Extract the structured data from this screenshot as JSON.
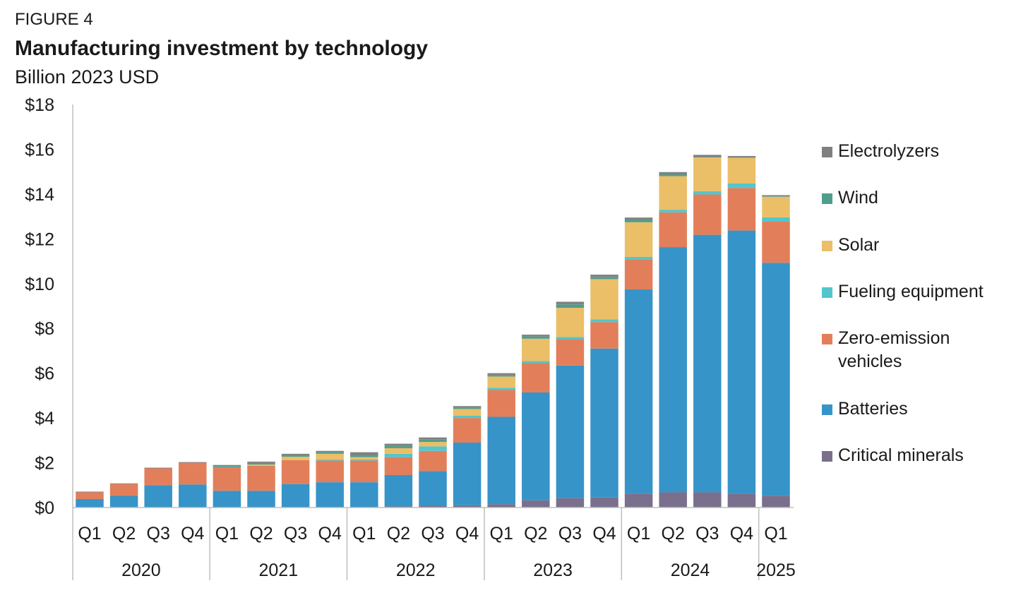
{
  "figure_label": "FIGURE 4",
  "title": "Manufacturing investment by technology",
  "subtitle": "Billion 2023 USD",
  "chart_data": {
    "type": "bar",
    "stacked": true,
    "title": "Manufacturing investment by technology",
    "ylabel": "Billion 2023 USD",
    "ylim": [
      0,
      18
    ],
    "yticks": [
      0,
      2,
      4,
      6,
      8,
      10,
      12,
      14,
      16,
      18
    ],
    "ytick_labels": [
      "$0",
      "$2",
      "$4",
      "$6",
      "$8",
      "$10",
      "$12",
      "$14",
      "$16",
      "$18"
    ],
    "categories": [
      "Q1",
      "Q2",
      "Q3",
      "Q4",
      "Q1",
      "Q2",
      "Q3",
      "Q4",
      "Q1",
      "Q2",
      "Q3",
      "Q4",
      "Q1",
      "Q2",
      "Q3",
      "Q4",
      "Q1",
      "Q2",
      "Q3",
      "Q4",
      "Q1"
    ],
    "year_groups": [
      {
        "label": "2020",
        "count": 4
      },
      {
        "label": "2021",
        "count": 4
      },
      {
        "label": "2022",
        "count": 4
      },
      {
        "label": "2023",
        "count": 4
      },
      {
        "label": "2024",
        "count": 4
      },
      {
        "label": "2025",
        "count": 1
      }
    ],
    "series": [
      {
        "name": "Critical minerals",
        "color": "#7a6f8c",
        "values": [
          0.0,
          0.0,
          0.0,
          0.0,
          0.0,
          0.0,
          0.0,
          0.0,
          0.0,
          0.05,
          0.08,
          0.1,
          0.15,
          0.32,
          0.42,
          0.45,
          0.62,
          0.68,
          0.68,
          0.62,
          0.53
        ]
      },
      {
        "name": "Batteries",
        "color": "#3694c8",
        "values": [
          0.38,
          0.52,
          1.0,
          1.03,
          0.75,
          0.75,
          1.05,
          1.13,
          1.13,
          1.4,
          1.55,
          2.8,
          3.9,
          4.82,
          5.92,
          6.65,
          9.12,
          10.95,
          11.5,
          11.75,
          10.4
        ]
      },
      {
        "name": "Zero-emission vehicles",
        "color": "#e27f5a",
        "values": [
          0.3,
          0.53,
          0.75,
          0.97,
          1.05,
          1.12,
          1.07,
          0.97,
          0.97,
          0.8,
          0.9,
          1.1,
          1.2,
          1.32,
          1.18,
          1.18,
          1.35,
          1.55,
          1.8,
          1.9,
          1.85
        ]
      },
      {
        "name": "Fueling equipment",
        "color": "#52c6cc",
        "values": [
          0.0,
          0.0,
          0.0,
          0.0,
          0.0,
          0.0,
          0.0,
          0.05,
          0.05,
          0.15,
          0.2,
          0.1,
          0.1,
          0.08,
          0.1,
          0.12,
          0.1,
          0.12,
          0.15,
          0.2,
          0.18
        ]
      },
      {
        "name": "Solar",
        "color": "#ebbe68",
        "values": [
          0.0,
          0.0,
          0.0,
          0.0,
          0.0,
          0.05,
          0.15,
          0.25,
          0.1,
          0.25,
          0.2,
          0.3,
          0.5,
          1.0,
          1.3,
          1.8,
          1.55,
          1.5,
          1.5,
          1.15,
          0.92
        ]
      },
      {
        "name": "Wind",
        "color": "#4f9e8c",
        "values": [
          0.0,
          0.0,
          0.0,
          0.0,
          0.05,
          0.07,
          0.08,
          0.08,
          0.1,
          0.1,
          0.12,
          0.05,
          0.05,
          0.1,
          0.15,
          0.1,
          0.12,
          0.08,
          0.02,
          0.02,
          0.02
        ]
      },
      {
        "name": "Electrolyzers",
        "color": "#808080",
        "values": [
          0.03,
          0.03,
          0.03,
          0.03,
          0.05,
          0.06,
          0.05,
          0.05,
          0.12,
          0.1,
          0.08,
          0.08,
          0.1,
          0.08,
          0.12,
          0.1,
          0.09,
          0.1,
          0.1,
          0.06,
          0.05
        ]
      }
    ],
    "legend": [
      "Electrolyzers",
      "Wind",
      "Solar",
      "Fueling equipment",
      "Zero-emission vehicles",
      "Batteries",
      "Critical minerals"
    ],
    "legend_position": "right"
  }
}
